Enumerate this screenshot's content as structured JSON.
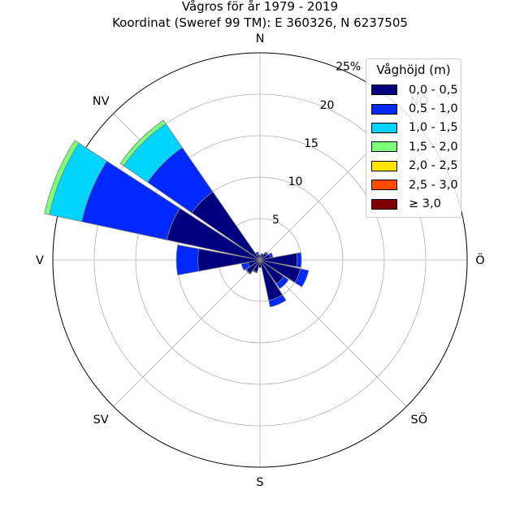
{
  "title": "Vågros för år 1979 - 2019",
  "subtitle": "Koordinat (Sweref 99 TM): E 360326, N 6237505",
  "chart_data": {
    "type": "polar-stacked-bar",
    "title": "Vågros för år 1979 - 2019",
    "subtitle": "Koordinat (Sweref 99 TM): E 360326, N 6237505",
    "direction_labels": [
      "N",
      "NÖ",
      "Ö",
      "SÖ",
      "S",
      "SV",
      "V",
      "NV"
    ],
    "radial_ticks": [
      "5",
      "10",
      "15",
      "20",
      "25%"
    ],
    "radial_max": 25,
    "grid": true,
    "legend_title": "Våghöjd (m)",
    "legend_location": "upper right",
    "sectors": [
      "N",
      "NNÖ",
      "NÖ",
      "ÖNÖ",
      "Ö",
      "ÖSÖ",
      "SÖ",
      "SSÖ",
      "S",
      "SSV",
      "SV",
      "VSV",
      "V",
      "VNV",
      "NV",
      "NNV"
    ],
    "series": [
      {
        "name": "0,0 - 0,5",
        "color": "#00007f",
        "values": [
          0.6,
          0.8,
          1.0,
          1.3,
          4.5,
          5.0,
          3.5,
          5.0,
          0.9,
          1.5,
          2.0,
          1.5,
          7.5,
          11.5,
          10.0,
          0.7
        ]
      },
      {
        "name": "0,5 - 1,0",
        "color": "#0028ff",
        "values": [
          0.0,
          0.0,
          0.2,
          0.3,
          0.5,
          1.0,
          0.7,
          0.8,
          0.0,
          0.1,
          0.1,
          0.8,
          2.6,
          10.5,
          6.5,
          0.3
        ]
      },
      {
        "name": "1,0 - 1,5",
        "color": "#00d5ff",
        "values": [
          0.0,
          0.0,
          0.0,
          0.0,
          0.0,
          0.0,
          0.0,
          0.0,
          0.0,
          0.0,
          0.0,
          0.0,
          0.0,
          4.0,
          3.5,
          0.0
        ]
      },
      {
        "name": "1,5 - 2,0",
        "color": "#7cff79",
        "values": [
          0.0,
          0.0,
          0.0,
          0.0,
          0.0,
          0.0,
          0.0,
          0.0,
          0.0,
          0.0,
          0.0,
          0.0,
          0.0,
          0.6,
          0.5,
          0.0
        ]
      },
      {
        "name": "2,0 - 2,5",
        "color": "#ffe600",
        "values": [
          0.0,
          0.0,
          0.0,
          0.0,
          0.0,
          0.0,
          0.0,
          0.0,
          0.0,
          0.0,
          0.0,
          0.0,
          0.0,
          0.0,
          0.0,
          0.0
        ]
      },
      {
        "name": "2,5 - 3,0",
        "color": "#ff4a00",
        "values": [
          0.0,
          0.0,
          0.0,
          0.0,
          0.0,
          0.0,
          0.0,
          0.0,
          0.0,
          0.0,
          0.0,
          0.0,
          0.0,
          0.0,
          0.0,
          0.0
        ]
      },
      {
        "name": "≥ 3,0",
        "color": "#7f0000",
        "values": [
          0.0,
          0.0,
          0.0,
          0.0,
          0.0,
          0.0,
          0.0,
          0.0,
          0.0,
          0.0,
          0.0,
          0.0,
          0.0,
          0.0,
          0.0,
          0.0
        ]
      }
    ]
  }
}
